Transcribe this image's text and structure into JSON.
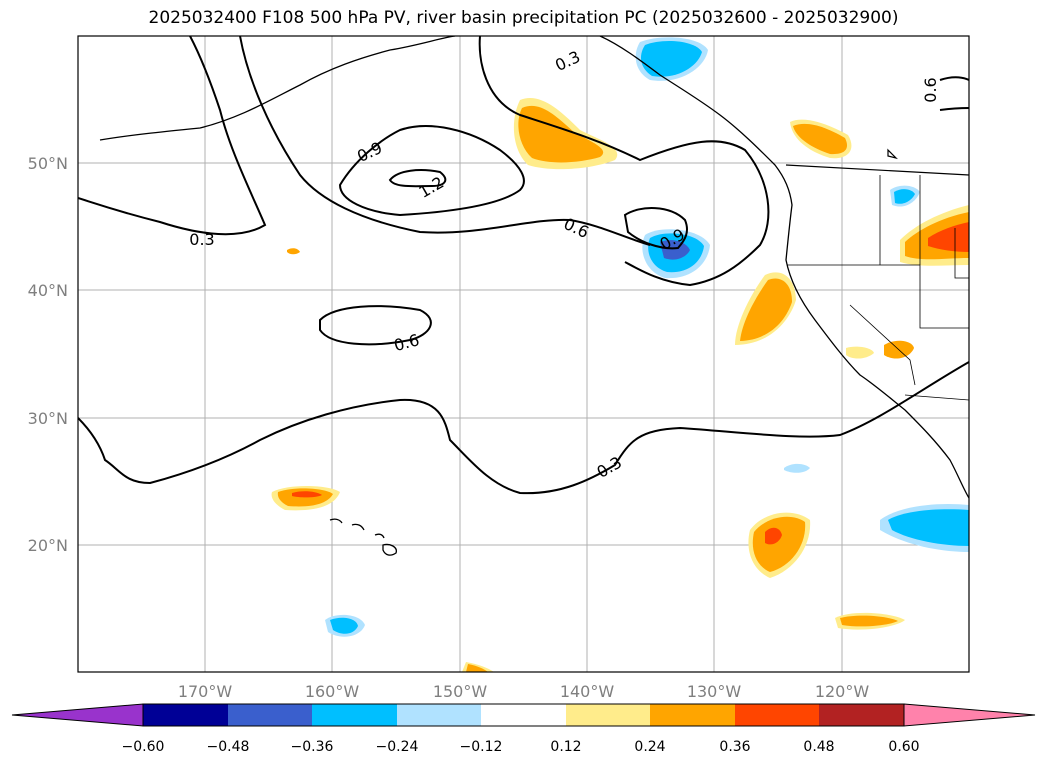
{
  "chart_data": {
    "type": "map-contour",
    "title": "2025032400 F108 500 hPa PV, river basin precipitation PC (2025032600 - 2025032900)",
    "lat_ticks": [
      {
        "value": 50,
        "label": "50°N"
      },
      {
        "value": 40,
        "label": "40°N"
      },
      {
        "value": 30,
        "label": "30°N"
      },
      {
        "value": 20,
        "label": "20°N"
      }
    ],
    "lon_ticks": [
      {
        "value": -170,
        "label": "170°W"
      },
      {
        "value": -160,
        "label": "160°W"
      },
      {
        "value": -150,
        "label": "150°W"
      },
      {
        "value": -140,
        "label": "140°W"
      },
      {
        "value": -130,
        "label": "130°W"
      },
      {
        "value": -120,
        "label": "120°W"
      }
    ],
    "lon_range": [
      -180,
      -110
    ],
    "lat_range": [
      10,
      60
    ],
    "pv_contour_labels": [
      "0.3",
      "0.9",
      "1.2",
      "0.6",
      "0.6",
      "0.3",
      "0.9",
      "0.6",
      "0.3"
    ],
    "colorbar": {
      "ticks": [
        "−0.60",
        "−0.48",
        "−0.36",
        "−0.24",
        "−0.12",
        "0.12",
        "0.24",
        "0.36",
        "0.48",
        "0.60"
      ],
      "colors": [
        "#9933cc",
        "#000096",
        "#3a5fcd",
        "#00bfff",
        "#b0e2ff",
        "#ffffff",
        "#ffec8b",
        "#ffa500",
        "#ff4500",
        "#b22222",
        "#ff82ab"
      ]
    }
  }
}
